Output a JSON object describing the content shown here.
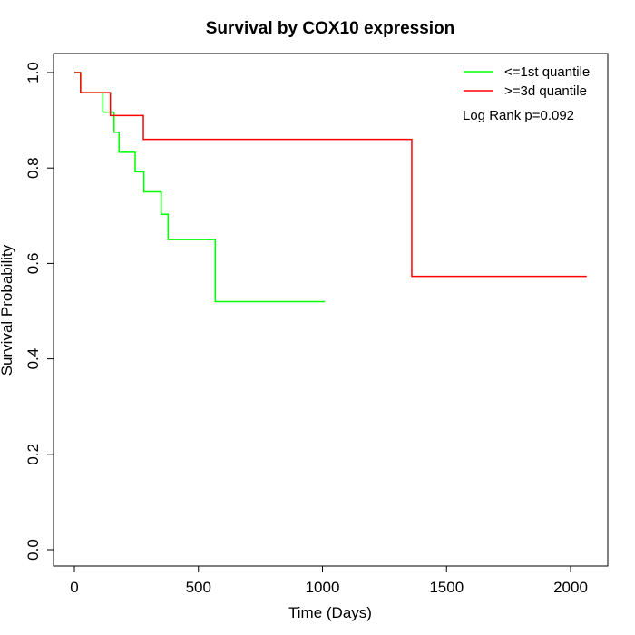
{
  "chart_data": {
    "type": "line",
    "title": "Survival by COX10 expression",
    "xlabel": "Time (Days)",
    "ylabel": "Survival Probability",
    "xlim": [
      0,
      2070
    ],
    "ylim": [
      0,
      1
    ],
    "xticks": [
      0,
      500,
      1000,
      1500,
      2000
    ],
    "xtick_labels": [
      "0",
      "500",
      "1000",
      "1500",
      "2000"
    ],
    "yticks": [
      0,
      0.2,
      0.4,
      0.6,
      0.8,
      1.0
    ],
    "ytick_labels": [
      "0.0",
      "0.2",
      "0.4",
      "0.6",
      "0.8",
      "1.0"
    ],
    "grid": false,
    "legend_position": "top-right",
    "annotation": "Log Rank p=0.092",
    "series": [
      {
        "name": "<=1st quantile",
        "color": "#00ff00",
        "step": true,
        "points": [
          [
            0,
            1.0
          ],
          [
            25,
            0.958
          ],
          [
            115,
            0.917
          ],
          [
            160,
            0.875
          ],
          [
            180,
            0.833
          ],
          [
            245,
            0.792
          ],
          [
            280,
            0.75
          ],
          [
            350,
            0.703
          ],
          [
            378,
            0.65
          ],
          [
            568,
            0.52
          ],
          [
            1010,
            0.52
          ]
        ]
      },
      {
        "name": ">=3d quantile",
        "color": "#ff0000",
        "step": true,
        "points": [
          [
            0,
            1.0
          ],
          [
            25,
            0.958
          ],
          [
            145,
            0.91
          ],
          [
            278,
            0.86
          ],
          [
            1360,
            0.573
          ],
          [
            2065,
            0.573
          ]
        ]
      }
    ]
  }
}
